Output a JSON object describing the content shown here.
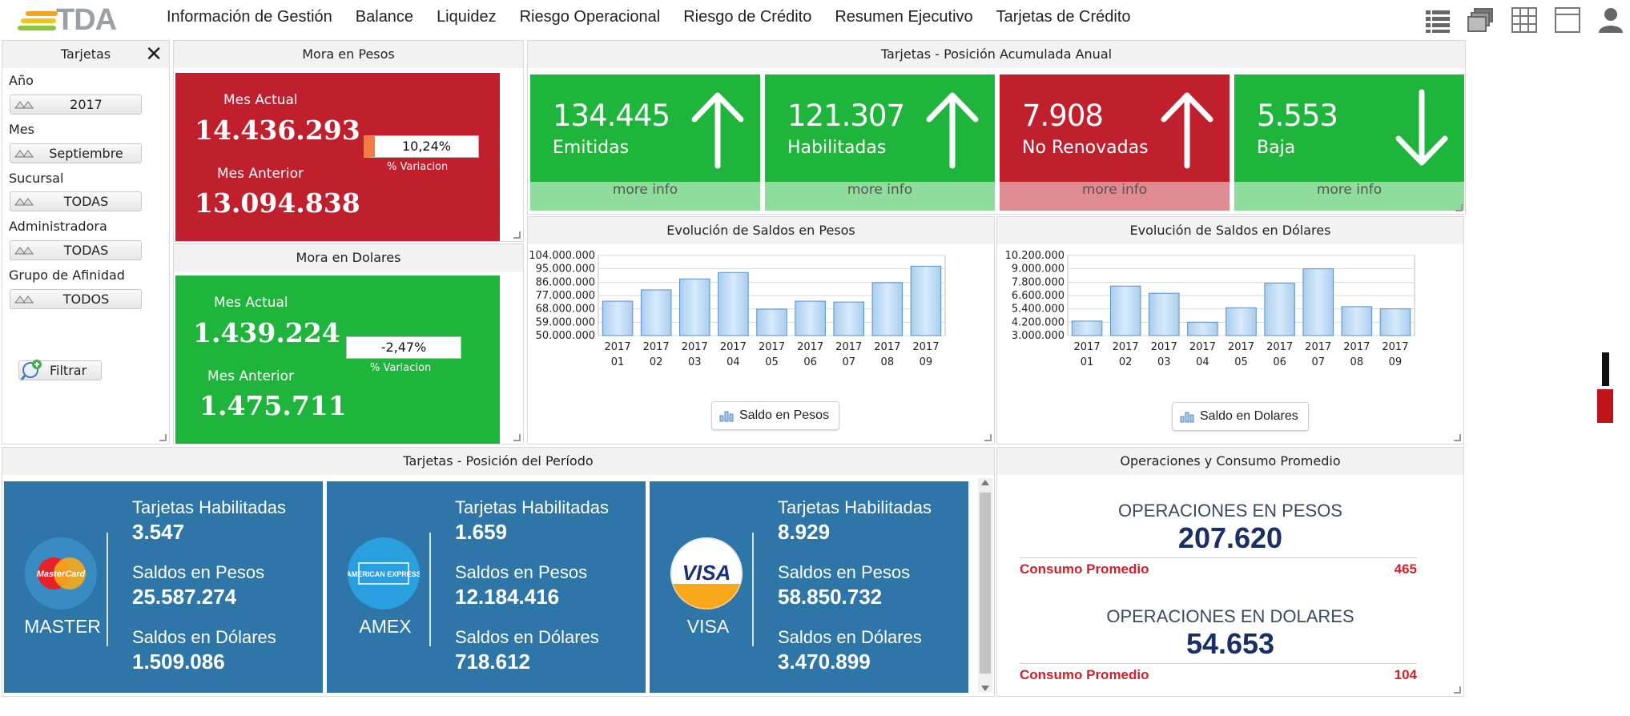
{
  "app": {
    "logo_text": "TDA",
    "menu": [
      "Información de Gestión",
      "Balance",
      "Liquidez",
      "Riesgo Operacional",
      "Riesgo de Crédito",
      "Resumen Ejecutivo",
      "Tarjetas de Crédito"
    ],
    "nav_icons": [
      "list-view-icon",
      "stacked-windows-icon",
      "grid-icon",
      "single-window-icon",
      "user-icon"
    ]
  },
  "filters": {
    "title": "Tarjetas",
    "close_label": "✕",
    "anio_label": "Año",
    "anio_value": "2017",
    "mes_label": "Mes",
    "mes_value": "Septiembre",
    "sucursal_label": "Sucursal",
    "sucursal_value": "TODAS",
    "administradora_label": "Administradora",
    "administradora_value": "TODAS",
    "grupo_label": "Grupo de Afinidad",
    "grupo_value": "TODOS",
    "filtrar_label": "Filtrar"
  },
  "mora_pesos": {
    "title": "Mora en Pesos",
    "actual_label": "Mes Actual",
    "actual_value": "14.436.293",
    "anterior_label": "Mes Anterior",
    "anterior_value": "13.094.838",
    "variacion": "10,24%",
    "variacion_label": "% Variacion",
    "color": "#c0202e"
  },
  "mora_dolares": {
    "title": "Mora en Dolares",
    "actual_label": "Mes Actual",
    "actual_value": "1.439.224",
    "anterior_label": "Mes Anterior",
    "anterior_value": "1.475.711",
    "variacion": "-2,47%",
    "variacion_label": "% Variacion",
    "color": "#1fb53c"
  },
  "posicion_anual": {
    "title": "Tarjetas - Posición Acumulada Anual",
    "tiles": [
      {
        "value": "134.445",
        "label": "Emitidas",
        "arrow": "up",
        "color": "#1fb53c",
        "footer_color": "#8fdc9c",
        "more": "more info"
      },
      {
        "value": "121.307",
        "label": "Habilitadas",
        "arrow": "up",
        "color": "#1fb53c",
        "footer_color": "#8fdc9c",
        "more": "more info"
      },
      {
        "value": "7.908",
        "label": "No Renovadas",
        "arrow": "up",
        "color": "#c0202e",
        "footer_color": "#e08a91",
        "more": "more info"
      },
      {
        "value": "5.553",
        "label": "Baja",
        "arrow": "down",
        "color": "#1fb53c",
        "footer_color": "#8fdc9c",
        "more": "more info"
      }
    ]
  },
  "chart_pesos": {
    "title": "Evolución de Saldos en Pesos",
    "legend": "Saldo en Pesos"
  },
  "chart_dolares": {
    "title": "Evolución de Saldos en Dólares",
    "legend": "Saldo en Dolares"
  },
  "chart_data": [
    {
      "type": "bar",
      "title": "Evolución de Saldos en Pesos",
      "categories": [
        "2017 01",
        "2017 02",
        "2017 03",
        "2017 04",
        "2017 05",
        "2017 06",
        "2017 07",
        "2017 08",
        "2017 09"
      ],
      "series": [
        {
          "name": "Saldo en Pesos",
          "values": [
            73200000,
            80800000,
            88200000,
            92500000,
            67800000,
            73200000,
            72600000,
            85700000,
            96800000
          ]
        }
      ],
      "ylim": [
        50000000,
        104000000
      ],
      "yticks": [
        "104.000.000",
        "95.000.000",
        "86.000.000",
        "77.000.000",
        "68.000.000",
        "59.000.000",
        "50.000.000"
      ],
      "ytick_values": [
        104000000,
        95000000,
        86000000,
        77000000,
        68000000,
        59000000,
        50000000
      ],
      "grid": true
    },
    {
      "type": "bar",
      "title": "Evolución de Saldos en Dólares",
      "categories": [
        "2017 01",
        "2017 02",
        "2017 03",
        "2017 04",
        "2017 05",
        "2017 06",
        "2017 07",
        "2017 08",
        "2017 09"
      ],
      "series": [
        {
          "name": "Saldo en Dolares",
          "values": [
            4300000,
            7450000,
            6800000,
            4200000,
            5500000,
            7700000,
            9000000,
            5600000,
            5400000
          ]
        }
      ],
      "ylim": [
        3000000,
        10200000
      ],
      "yticks": [
        "10.200.000",
        "9.000.000",
        "7.800.000",
        "6.600.000",
        "5.400.000",
        "4.200.000",
        "3.000.000"
      ],
      "ytick_values": [
        10200000,
        9000000,
        7800000,
        6600000,
        5400000,
        4200000,
        3000000
      ],
      "grid": true
    }
  ],
  "posicion_periodo": {
    "title": "Tarjetas - Posición del Período",
    "cards": [
      {
        "brand": "MASTER",
        "logo": "mastercard-logo",
        "logo_text": "MasterCard",
        "habilitadas_label": "Tarjetas Habilitadas",
        "habilitadas": "3.547",
        "pesos_label": "Saldos en Pesos",
        "pesos": "25.587.274",
        "dolares_label": "Saldos en Dólares",
        "dolares": "1.509.086"
      },
      {
        "brand": "AMEX",
        "logo": "amex-logo",
        "logo_text": "AMERICAN EXPRESS",
        "habilitadas_label": "Tarjetas Habilitadas",
        "habilitadas": "1.659",
        "pesos_label": "Saldos en Pesos",
        "pesos": "12.184.416",
        "dolares_label": "Saldos en Dólares",
        "dolares": "718.612"
      },
      {
        "brand": "VISA",
        "logo": "visa-logo",
        "logo_text": "VISA",
        "habilitadas_label": "Tarjetas Habilitadas",
        "habilitadas": "8.929",
        "pesos_label": "Saldos en Pesos",
        "pesos": "58.850.732",
        "dolares_label": "Saldos en Dólares",
        "dolares": "3.470.899"
      }
    ]
  },
  "operaciones": {
    "title": "Operaciones y Consumo Promedio",
    "pesos_label": "OPERACIONES EN PESOS",
    "pesos_value": "207.620",
    "pesos_consumo_label": "Consumo Promedio",
    "pesos_consumo_value": "465",
    "dolares_label": "OPERACIONES EN DOLARES",
    "dolares_value": "54.653",
    "dolares_consumo_label": "Consumo Promedio",
    "dolares_consumo_value": "104"
  }
}
